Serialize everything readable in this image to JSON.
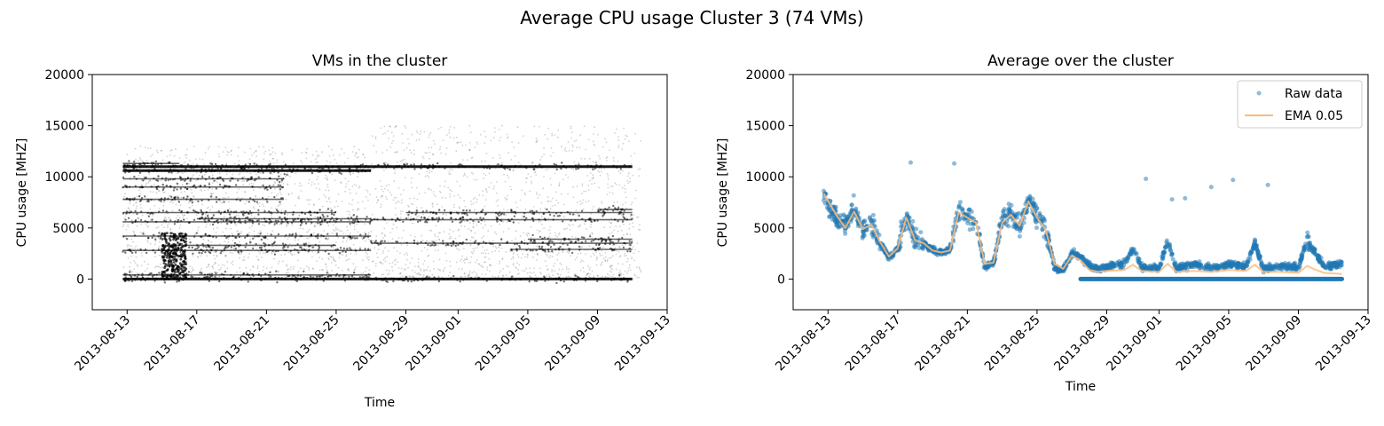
{
  "figure_title": "Average CPU usage Cluster 3 (74 VMs)",
  "chart_data": [
    {
      "type": "scatter",
      "title": "VMs in the cluster",
      "xlabel": "Time",
      "ylabel": "CPU usage [MHZ]",
      "ylim": [
        -3000,
        20000
      ],
      "xlim": [
        "2013-08-11",
        "2013-09-13"
      ],
      "yticks": [
        "0",
        "5000",
        "10000",
        "15000",
        "20000"
      ],
      "xticks": [
        "2013-08-13",
        "2013-08-17",
        "2013-08-21",
        "2013-08-25",
        "2013-08-29",
        "2013-09-01",
        "2013-09-05",
        "2013-09-09",
        "2013-09-13"
      ],
      "x_range": [
        "2013-08-12 18:00",
        "2013-09-11 12:00"
      ],
      "grid": false,
      "marker_color": "#000000",
      "series": [
        {
          "values": [
            {
              "level": 0,
              "from": "2013-08-12",
              "to": "2013-09-11"
            },
            {
              "level": 400,
              "from": "2013-08-12",
              "to": "2013-08-27"
            },
            {
              "level": 2800,
              "from": "2013-08-12",
              "to": "2013-08-27"
            },
            {
              "level": 3300,
              "from": "2013-08-15",
              "to": "2013-08-25"
            },
            {
              "level": 4200,
              "from": "2013-08-12",
              "to": "2013-08-27"
            },
            {
              "level": 5600,
              "from": "2013-08-12",
              "to": "2013-08-27"
            },
            {
              "level": 5900,
              "from": "2013-08-17",
              "to": "2013-08-27"
            },
            {
              "level": 6500,
              "from": "2013-08-12",
              "to": "2013-08-25"
            },
            {
              "level": 7800,
              "from": "2013-08-12",
              "to": "2013-08-22"
            },
            {
              "level": 9000,
              "from": "2013-08-12",
              "to": "2013-08-22"
            },
            {
              "level": 9800,
              "from": "2013-08-12",
              "to": "2013-08-22"
            },
            {
              "level": 10600,
              "from": "2013-08-12",
              "to": "2013-08-27"
            },
            {
              "level": 11000,
              "from": "2013-08-12",
              "to": "2013-09-11"
            },
            {
              "level": 11300,
              "from": "2013-08-12",
              "to": "2013-08-16"
            },
            {
              "level": 3500,
              "from": "2013-08-27",
              "to": "2013-09-11"
            },
            {
              "level": 5800,
              "from": "2013-08-27",
              "to": "2013-09-11"
            },
            {
              "level": 6500,
              "from": "2013-08-29",
              "to": "2013-09-11"
            },
            {
              "level": 2900,
              "from": "2013-09-04",
              "to": "2013-09-11"
            },
            {
              "level": 3900,
              "from": "2013-09-05",
              "to": "2013-09-11"
            },
            {
              "level": 6800,
              "from": "2013-09-09",
              "to": "2013-09-11"
            }
          ]
        }
      ]
    },
    {
      "type": "scatter",
      "title": "Average over the cluster",
      "xlabel": "Time",
      "ylabel": "CPU usage [MHZ]",
      "ylim": [
        -3000,
        20000
      ],
      "xlim": [
        "2013-08-11",
        "2013-09-13"
      ],
      "yticks": [
        "0",
        "5000",
        "10000",
        "15000",
        "20000"
      ],
      "xticks": [
        "2013-08-13",
        "2013-08-17",
        "2013-08-21",
        "2013-08-25",
        "2013-08-29",
        "2013-09-01",
        "2013-09-05",
        "2013-09-09",
        "2013-09-13"
      ],
      "grid": false,
      "legend_position": "top-right",
      "series": [
        {
          "name": "Raw data",
          "color": "#1f77b4",
          "style": "points",
          "keyframes": [
            [
              "2013-08-12 18:00",
              8000
            ],
            [
              "2013-08-13 12:00",
              6000
            ],
            [
              "2013-08-14 00:00",
              5200
            ],
            [
              "2013-08-14 12:00",
              7000
            ],
            [
              "2013-08-15 00:00",
              4800
            ],
            [
              "2013-08-15 12:00",
              5500
            ],
            [
              "2013-08-16 00:00",
              3500
            ],
            [
              "2013-08-16 12:00",
              2000
            ],
            [
              "2013-08-17 00:00",
              3000
            ],
            [
              "2013-08-17 12:00",
              6200
            ],
            [
              "2013-08-18 00:00",
              3800
            ],
            [
              "2013-08-18 12:00",
              3500
            ],
            [
              "2013-08-19 00:00",
              2800
            ],
            [
              "2013-08-19 12:00",
              2600
            ],
            [
              "2013-08-20 00:00",
              2800
            ],
            [
              "2013-08-20 12:00",
              6800
            ],
            [
              "2013-08-21 00:00",
              6000
            ],
            [
              "2013-08-21 12:00",
              5500
            ],
            [
              "2013-08-22 00:00",
              1200
            ],
            [
              "2013-08-22 12:00",
              1500
            ],
            [
              "2013-08-23 00:00",
              5800
            ],
            [
              "2013-08-23 12:00",
              6500
            ],
            [
              "2013-08-24 00:00",
              5200
            ],
            [
              "2013-08-24 12:00",
              7800
            ],
            [
              "2013-08-25 00:00",
              6200
            ],
            [
              "2013-08-25 12:00",
              5000
            ],
            [
              "2013-08-26 00:00",
              1100
            ],
            [
              "2013-08-26 12:00",
              900
            ],
            [
              "2013-08-27 00:00",
              2500
            ],
            [
              "2013-08-27 12:00",
              2200
            ],
            [
              "2013-08-28 00:00",
              1300
            ],
            [
              "2013-08-28 12:00",
              1000
            ],
            [
              "2013-08-29 00:00",
              1200
            ],
            [
              "2013-08-30 00:00",
              1500
            ],
            [
              "2013-08-30 12:00",
              3000
            ],
            [
              "2013-08-31 00:00",
              1200
            ],
            [
              "2013-09-01 00:00",
              1000
            ],
            [
              "2013-09-01 12:00",
              3800
            ],
            [
              "2013-09-02 00:00",
              1000
            ],
            [
              "2013-09-03 00:00",
              1500
            ],
            [
              "2013-09-04 00:00",
              1000
            ],
            [
              "2013-09-05 00:00",
              1500
            ],
            [
              "2013-09-06 00:00",
              1200
            ],
            [
              "2013-09-06 12:00",
              3500
            ],
            [
              "2013-09-07 00:00",
              1000
            ],
            [
              "2013-09-08 00:00",
              1300
            ],
            [
              "2013-09-09 00:00",
              1100
            ],
            [
              "2013-09-09 12:00",
              3800
            ],
            [
              "2013-09-10 00:00",
              2500
            ],
            [
              "2013-09-10 12:00",
              1200
            ],
            [
              "2013-09-11 12:00",
              1500
            ]
          ],
          "baseline": {
            "value": 0,
            "from": "2013-08-27 12:00",
            "to": "2013-09-11 12:00"
          },
          "outliers": [
            [
              "2013-08-17 18:00",
              11400
            ],
            [
              "2013-08-20 06:00",
              11300
            ],
            [
              "2013-08-31 06:00",
              9800
            ],
            [
              "2013-09-01 18:00",
              7800
            ],
            [
              "2013-09-02 12:00",
              7900
            ],
            [
              "2013-09-04 00:00",
              9000
            ],
            [
              "2013-09-05 06:00",
              9700
            ],
            [
              "2013-09-07 06:00",
              9200
            ]
          ]
        },
        {
          "name": "EMA 0.05",
          "color": "#ffbb78",
          "style": "line",
          "values": [
            [
              "2013-08-12 18:00",
              8400
            ],
            [
              "2013-08-13 12:00",
              6200
            ],
            [
              "2013-08-14 00:00",
              5000
            ],
            [
              "2013-08-14 12:00",
              6600
            ],
            [
              "2013-08-15 00:00",
              4900
            ],
            [
              "2013-08-15 12:00",
              5300
            ],
            [
              "2013-08-16 00:00",
              3600
            ],
            [
              "2013-08-16 12:00",
              2200
            ],
            [
              "2013-08-17 00:00",
              3000
            ],
            [
              "2013-08-17 12:00",
              6000
            ],
            [
              "2013-08-18 00:00",
              3800
            ],
            [
              "2013-08-18 12:00",
              3500
            ],
            [
              "2013-08-19 00:00",
              2800
            ],
            [
              "2013-08-19 12:00",
              2600
            ],
            [
              "2013-08-20 00:00",
              2800
            ],
            [
              "2013-08-20 12:00",
              6500
            ],
            [
              "2013-08-21 00:00",
              6000
            ],
            [
              "2013-08-21 12:00",
              5500
            ],
            [
              "2013-08-22 00:00",
              1500
            ],
            [
              "2013-08-22 12:00",
              1600
            ],
            [
              "2013-08-23 00:00",
              5500
            ],
            [
              "2013-08-23 12:00",
              6300
            ],
            [
              "2013-08-24 00:00",
              5200
            ],
            [
              "2013-08-24 12:00",
              7600
            ],
            [
              "2013-08-25 00:00",
              6000
            ],
            [
              "2013-08-25 12:00",
              4800
            ],
            [
              "2013-08-26 00:00",
              1500
            ],
            [
              "2013-08-26 12:00",
              1000
            ],
            [
              "2013-08-27 00:00",
              2300
            ],
            [
              "2013-08-27 12:00",
              1800
            ],
            [
              "2013-08-28 00:00",
              900
            ],
            [
              "2013-08-28 12:00",
              700
            ],
            [
              "2013-08-29 00:00",
              800
            ],
            [
              "2013-08-30 00:00",
              900
            ],
            [
              "2013-08-30 12:00",
              1400
            ],
            [
              "2013-08-31 00:00",
              800
            ],
            [
              "2013-09-01 00:00",
              700
            ],
            [
              "2013-09-01 12:00",
              1500
            ],
            [
              "2013-09-02 00:00",
              700
            ],
            [
              "2013-09-03 00:00",
              800
            ],
            [
              "2013-09-04 00:00",
              700
            ],
            [
              "2013-09-05 00:00",
              900
            ],
            [
              "2013-09-06 00:00",
              800
            ],
            [
              "2013-09-06 12:00",
              1400
            ],
            [
              "2013-09-07 00:00",
              700
            ],
            [
              "2013-09-08 00:00",
              700
            ],
            [
              "2013-09-09 00:00",
              600
            ],
            [
              "2013-09-09 12:00",
              1300
            ],
            [
              "2013-09-10 00:00",
              900
            ],
            [
              "2013-09-10 12:00",
              600
            ],
            [
              "2013-09-11 12:00",
              500
            ]
          ]
        }
      ]
    }
  ]
}
